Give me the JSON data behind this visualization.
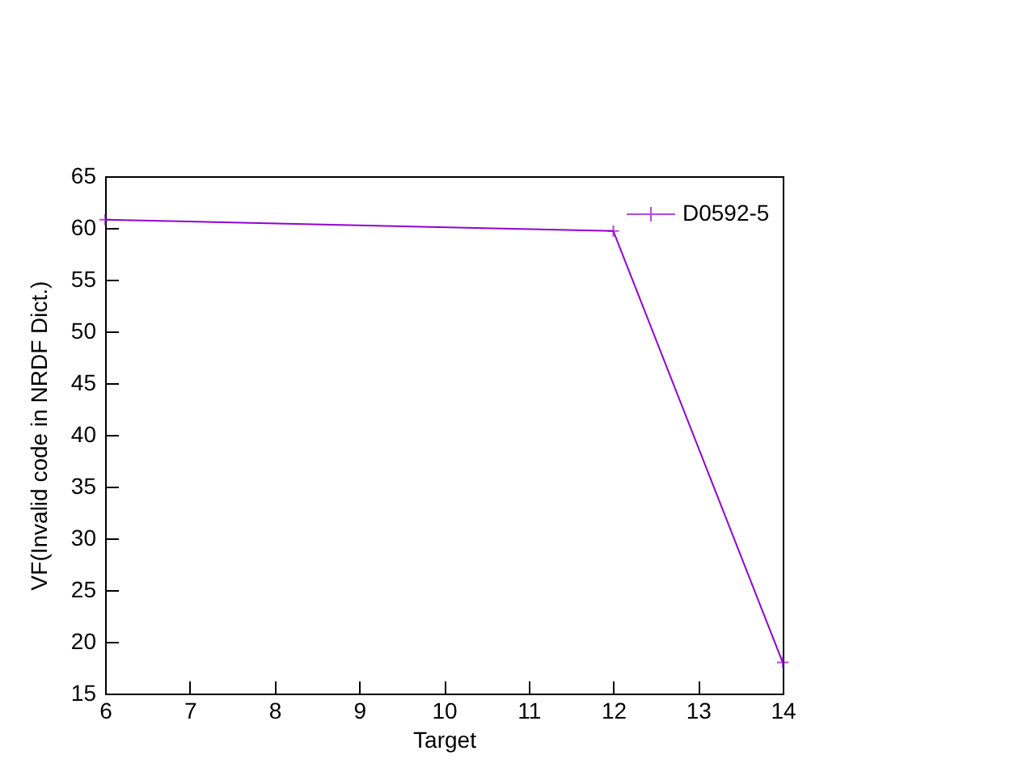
{
  "chart_data": {
    "type": "line",
    "xlabel": "Target",
    "ylabel": "VF(Invalid code in NRDF Dict.)",
    "x": [
      6,
      12,
      14
    ],
    "series": [
      {
        "name": "D0592-5",
        "color": "#9400d3",
        "values": [
          60.8,
          59.7,
          18
        ]
      }
    ],
    "xlim": [
      6,
      14
    ],
    "xticks": [
      6,
      7,
      8,
      9,
      10,
      11,
      12,
      13,
      14
    ],
    "ylim": [
      15,
      65
    ],
    "yticks": [
      15,
      20,
      25,
      30,
      35,
      40,
      45,
      50,
      55,
      60,
      65
    ],
    "grid": false,
    "legend": "top right",
    "marker": "cross"
  }
}
